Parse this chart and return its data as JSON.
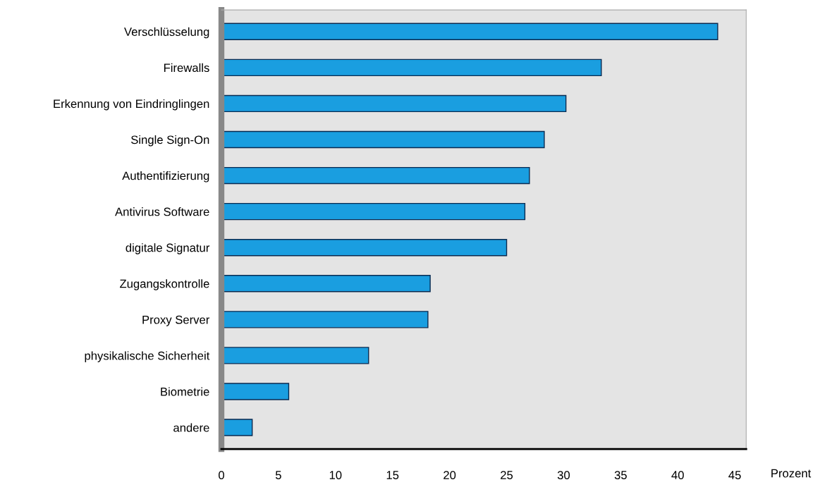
{
  "chart_data": {
    "type": "bar",
    "orientation": "horizontal",
    "xlabel": "Prozent",
    "categories": [
      "Verschlüsselung",
      "Firewalls",
      "Erkennung von Eindringlingen",
      "Single Sign-On",
      "Authentifizierung",
      "Antivirus Software",
      "digitale Signatur",
      "Zugangskontrolle",
      "Proxy Server",
      "physikalische Sicherheit",
      "Biometrie",
      "andere"
    ],
    "values": [
      43.5,
      33.3,
      30.2,
      28.3,
      27.0,
      26.6,
      25.0,
      18.3,
      18.1,
      12.9,
      5.9,
      2.7
    ],
    "color": "#1a9ee0",
    "xlim": [
      0,
      46
    ],
    "xticks": [
      0,
      5,
      10,
      15,
      20,
      25,
      30,
      35,
      40,
      45
    ],
    "grid": false,
    "legend": false
  }
}
